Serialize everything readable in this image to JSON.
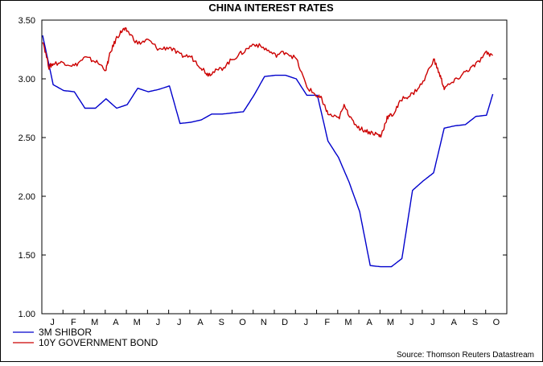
{
  "chart_data": {
    "type": "line",
    "title": "CHINA INTEREST RATES",
    "ylim": [
      1.0,
      3.5
    ],
    "yticks": [
      "1.00",
      "1.50",
      "2.00",
      "2.50",
      "3.00",
      "3.50"
    ],
    "ytick_values": [
      1.0,
      1.5,
      2.0,
      2.5,
      3.0,
      3.5
    ],
    "month_labels": [
      "J",
      "F",
      "M",
      "A",
      "M",
      "J",
      "J",
      "A",
      "S",
      "O",
      "N",
      "D",
      "J",
      "F",
      "M",
      "A",
      "M",
      "J",
      "J",
      "A",
      "S",
      "O"
    ],
    "grid": false,
    "legend_position": "bottom-left",
    "source": "Source: Thomson Reuters Datastream",
    "series": [
      {
        "name": "3M SHIBOR",
        "color": "#0000cc",
        "x": [
          0,
          0.5,
          1,
          1.5,
          2,
          2.5,
          3,
          3.5,
          4,
          4.5,
          5,
          5.5,
          6,
          6.5,
          7,
          7.5,
          8,
          8.5,
          9,
          9.5,
          10,
          10.5,
          11,
          11.5,
          12,
          12.5,
          13,
          13.5,
          14,
          14.5,
          15,
          15.5,
          16,
          16.5,
          17,
          17.5,
          18,
          18.5,
          19,
          19.5,
          20,
          20.5,
          21,
          21.3
        ],
        "values": [
          3.37,
          2.95,
          2.9,
          2.89,
          2.75,
          2.75,
          2.83,
          2.75,
          2.78,
          2.92,
          2.89,
          2.91,
          2.94,
          2.62,
          2.63,
          2.65,
          2.7,
          2.7,
          2.71,
          2.72,
          2.86,
          3.02,
          3.03,
          3.03,
          3.0,
          2.86,
          2.86,
          2.47,
          2.33,
          2.12,
          1.87,
          1.41,
          1.4,
          1.4,
          1.47,
          2.05,
          2.13,
          2.2,
          2.58,
          2.6,
          2.61,
          2.68,
          2.69,
          2.87
        ]
      },
      {
        "name": "10Y GOVERNMENT BOND",
        "color": "#cc0000",
        "x": [
          0,
          0.3,
          0.5,
          1,
          1.5,
          2,
          2.5,
          3,
          3.2,
          3.5,
          3.8,
          4,
          4.5,
          5,
          5.5,
          6,
          6.5,
          7,
          7.5,
          7.8,
          8,
          8.5,
          9,
          9.5,
          10,
          10.5,
          11,
          11.5,
          12,
          12.5,
          13,
          13.2,
          13.5,
          14,
          14.3,
          14.6,
          15,
          15.4,
          15.8,
          16,
          16.3,
          16.6,
          17,
          17.5,
          18,
          18.5,
          18.8,
          19,
          19.5,
          20,
          20.5,
          21,
          21.3
        ],
        "values": [
          3.33,
          3.1,
          3.13,
          3.14,
          3.11,
          3.18,
          3.15,
          3.08,
          3.22,
          3.35,
          3.42,
          3.41,
          3.3,
          3.33,
          3.25,
          3.27,
          3.2,
          3.19,
          3.1,
          3.04,
          3.05,
          3.09,
          3.17,
          3.23,
          3.3,
          3.26,
          3.2,
          3.23,
          3.17,
          2.93,
          2.85,
          2.83,
          2.7,
          2.66,
          2.78,
          2.65,
          2.58,
          2.55,
          2.53,
          2.51,
          2.67,
          2.7,
          2.83,
          2.87,
          2.97,
          3.17,
          3.03,
          2.92,
          2.98,
          3.06,
          3.12,
          3.22,
          3.2
        ]
      }
    ]
  }
}
